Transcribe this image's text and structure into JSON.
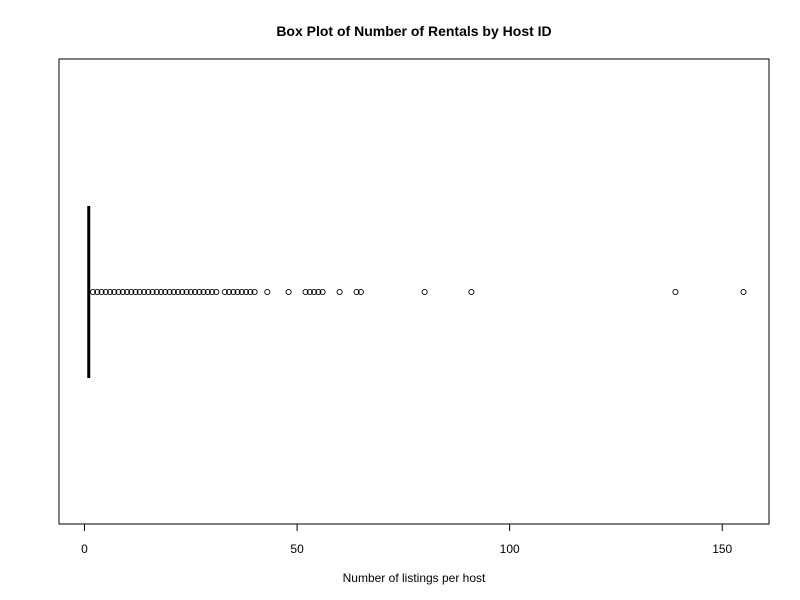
{
  "chart_data": {
    "type": "boxplot",
    "orientation": "horizontal",
    "title": "Box Plot of Number of Rentals by Host ID",
    "xlabel": "Number of listings per host",
    "ylabel": "",
    "xlim": [
      -6,
      161
    ],
    "x_ticks": [
      0,
      50,
      100,
      150
    ],
    "x_tick_labels": [
      "0",
      "50",
      "100",
      "150"
    ],
    "box": {
      "min": 1,
      "q1": 1,
      "median": 1,
      "q3": 1,
      "whisker_high": 1
    },
    "outliers": [
      2,
      3,
      4,
      5,
      6,
      7,
      8,
      9,
      10,
      11,
      12,
      13,
      14,
      15,
      16,
      17,
      18,
      19,
      20,
      21,
      22,
      23,
      24,
      25,
      26,
      27,
      28,
      29,
      30,
      31,
      33,
      34,
      35,
      36,
      37,
      38,
      39,
      40,
      43,
      48,
      52,
      53,
      54,
      55,
      56,
      60,
      64,
      65,
      80,
      91,
      139,
      155
    ],
    "grid": false,
    "legend": "none"
  }
}
